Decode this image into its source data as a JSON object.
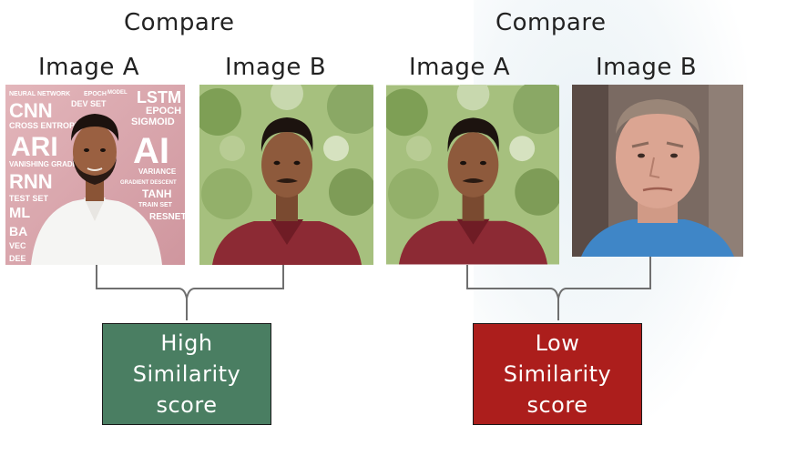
{
  "left_group": {
    "compare_label": "Compare",
    "image_a_label": "Image A",
    "image_b_label": "Image B",
    "result_label": "High\nSimilarity\nscore",
    "result_color": "#4a7e62"
  },
  "right_group": {
    "compare_label": "Compare",
    "image_a_label": "Image A",
    "image_b_label": "Image B",
    "result_label": "Low\nSimilarity\nscore",
    "result_color": "#ac1e1c"
  },
  "word_cloud": [
    "NEURAL NETWORK",
    "EPOCH",
    "MODEL",
    "LSTM",
    "CNN",
    "DEV SET",
    "EPOCH",
    "CROSS ENTROPY",
    "SIGMOID",
    "ARI",
    "AI",
    "VANISHING GRADIENT",
    "VARIANCE",
    "RNN",
    "GRADIENT DESCENT",
    "TEST SET",
    "TANH",
    "TRAIN SET",
    "ML",
    "RESNET",
    "BA",
    "VEC",
    "DEE"
  ]
}
